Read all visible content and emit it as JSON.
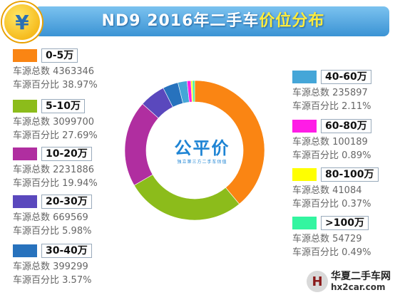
{
  "header": {
    "coin_symbol": "¥",
    "title_main": "ND9 2016年二手车",
    "title_highlight": "价位分布"
  },
  "logo": {
    "text": "公平价",
    "subtext": "独立第三方二手车估值"
  },
  "watermark": {
    "text": "华夏二手车网",
    "url": "hx2car.com"
  },
  "labels": {
    "count": "车源总数 ",
    "percent": "车源百分比 "
  },
  "chart_data": {
    "type": "pie",
    "title": "ND9 2016年二手车价位分布",
    "donut": true,
    "slices": [
      {
        "range": "0-5万",
        "count": "4363346",
        "percent": "38.97%",
        "value": 38.97,
        "color": "#fa8513"
      },
      {
        "range": "5-10万",
        "count": "3099700",
        "percent": "27.69%",
        "value": 27.69,
        "color": "#8cbc1b"
      },
      {
        "range": "10-20万",
        "count": "2231886",
        "percent": "19.94%",
        "value": 19.94,
        "color": "#b02ea0"
      },
      {
        "range": "20-30万",
        "count": "669569",
        "percent": "5.98%",
        "value": 5.98,
        "color": "#5a48bd"
      },
      {
        "range": "30-40万",
        "count": "399299",
        "percent": "3.57%",
        "value": 3.57,
        "color": "#2772bd"
      },
      {
        "range": "40-60万",
        "count": "235897",
        "percent": "2.11%",
        "value": 2.11,
        "color": "#45a6d8"
      },
      {
        "range": "60-80万",
        "count": "100189",
        "percent": "0.89%",
        "value": 0.89,
        "color": "#ff1ce6"
      },
      {
        "range": "80-100万",
        "count": "41084",
        "percent": "0.37%",
        "value": 0.37,
        "color": "#ffff00"
      },
      {
        "range": ">100万",
        "count": "54729",
        "percent": "0.49%",
        "value": 0.49,
        "color": "#33f5a0"
      }
    ]
  }
}
